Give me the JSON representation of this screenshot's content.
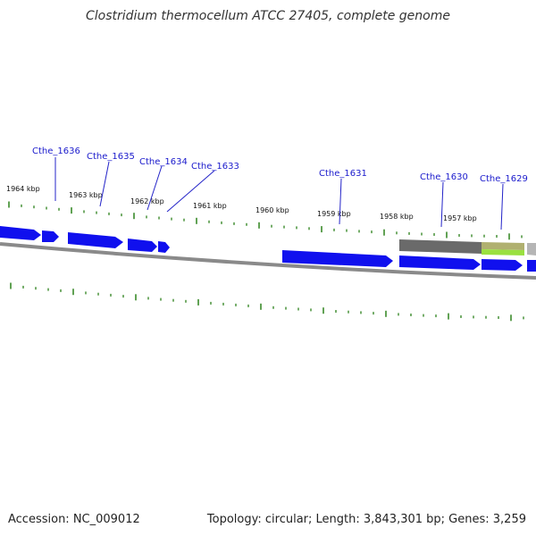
{
  "title": "Clostridium thermocellum ATCC 27405, complete genome",
  "footer": {
    "accession": "Accession: NC_009012",
    "summary": "Topology: circular; Length: 3,843,301 bp; Genes: 3,259"
  },
  "colors": {
    "gene_fill": "#1010ee",
    "gene_label": "#1a1acc",
    "leader_line": "#2323c8",
    "tick": "#3a8a2a",
    "backbone": "#8a8a8a",
    "feature_gray": "#6a6a6a",
    "feature_green": "#9ae040",
    "feature_olive": "#b0b070"
  },
  "scale_labels": [
    "1964 kbp",
    "1963 kbp",
    "1962 kbp",
    "1961 kbp",
    "1960 kbp",
    "1959 kbp",
    "1958 kbp",
    "1957 kbp"
  ],
  "gene_labels": [
    "Cthe_1636",
    "Cthe_1635",
    "Cthe_1634",
    "Cthe_1633",
    "Cthe_1631",
    "Cthe_1630",
    "Cthe_1629"
  ]
}
